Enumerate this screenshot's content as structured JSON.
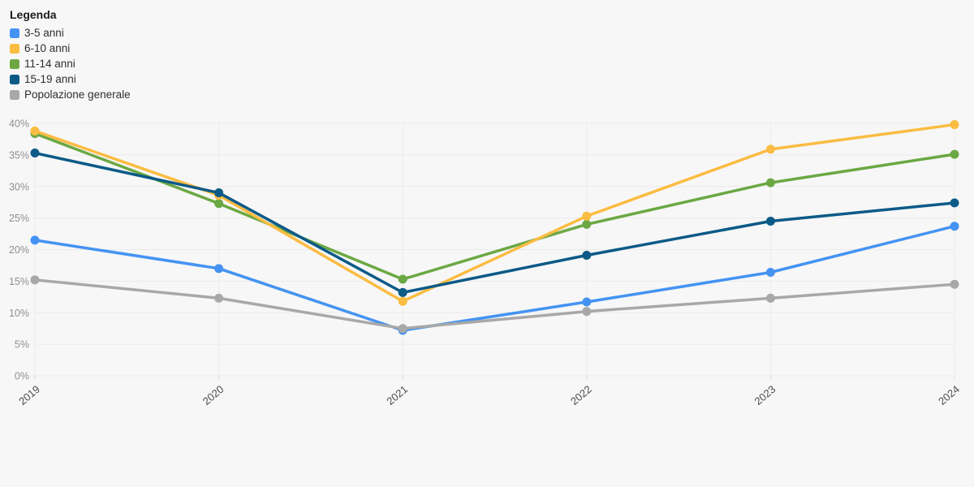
{
  "legend": {
    "title": "Legenda"
  },
  "chart_data": {
    "type": "line",
    "title": "",
    "categories": [
      "2019",
      "2020",
      "2021",
      "2022",
      "2023",
      "2024"
    ],
    "y_ticks": [
      "0%",
      "5%",
      "10%",
      "15%",
      "20%",
      "25%",
      "30%",
      "35%",
      "40%"
    ],
    "ylim": [
      0,
      40
    ],
    "y_tick_step": 5,
    "grid": true,
    "legend_position": "top-left",
    "x_label_rotation_deg": -40,
    "series": [
      {
        "name": "3-5 anni",
        "color": "#4493F2",
        "values": [
          21.5,
          17.0,
          7.2,
          11.7,
          16.4,
          23.7
        ]
      },
      {
        "name": "6-10 anni",
        "color": "#FBBC42",
        "values": [
          38.8,
          28.6,
          11.8,
          25.3,
          35.9,
          39.8
        ]
      },
      {
        "name": "11-14 anni",
        "color": "#6BA843",
        "values": [
          38.4,
          27.3,
          15.3,
          24.0,
          30.6,
          35.1
        ]
      },
      {
        "name": "15-19 anni",
        "color": "#0C5A87",
        "values": [
          35.3,
          29.0,
          13.2,
          19.1,
          24.5,
          27.4
        ]
      },
      {
        "name": "Popolazione generale",
        "color": "#A8A8A8",
        "values": [
          15.2,
          12.3,
          7.5,
          10.2,
          12.3,
          14.5
        ]
      }
    ],
    "draw_order": [
      0,
      2,
      1,
      3,
      4
    ],
    "colors": {
      "background": "#f7f7f7",
      "grid": "#ebebeb",
      "tick": "#dcdcdc",
      "y_label": "#8f8f8f",
      "x_label": "#4d4d4d"
    }
  }
}
